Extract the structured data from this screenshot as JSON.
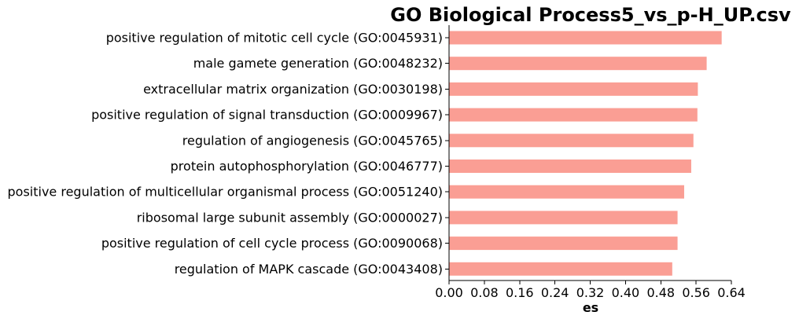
{
  "chart_data": {
    "type": "bar",
    "orientation": "horizontal",
    "title": "GO Biological Process5_vs_p-H_UP.csv",
    "xlabel": "es",
    "ylabel": "",
    "xlim": [
      0,
      0.64
    ],
    "xticks": [
      "0.00",
      "0.08",
      "0.16",
      "0.24",
      "0.32",
      "0.40",
      "0.48",
      "0.56",
      "0.64"
    ],
    "grid": false,
    "bar_color": "#fa9e94",
    "categories": [
      "positive regulation of mitotic cell cycle (GO:0045931)",
      "male gamete generation (GO:0048232)",
      "extracellular matrix organization (GO:0030198)",
      "positive regulation of signal transduction (GO:0009967)",
      "regulation of angiogenesis (GO:0045765)",
      "protein autophosphorylation (GO:0046777)",
      "positive regulation of multicellular organismal process (GO:0051240)",
      "ribosomal large subunit assembly (GO:0000027)",
      "positive regulation of cell cycle process (GO:0090068)",
      "regulation of MAPK cascade (GO:0043408)"
    ],
    "values": [
      0.618,
      0.584,
      0.564,
      0.563,
      0.554,
      0.549,
      0.533,
      0.518,
      0.518,
      0.506
    ]
  }
}
